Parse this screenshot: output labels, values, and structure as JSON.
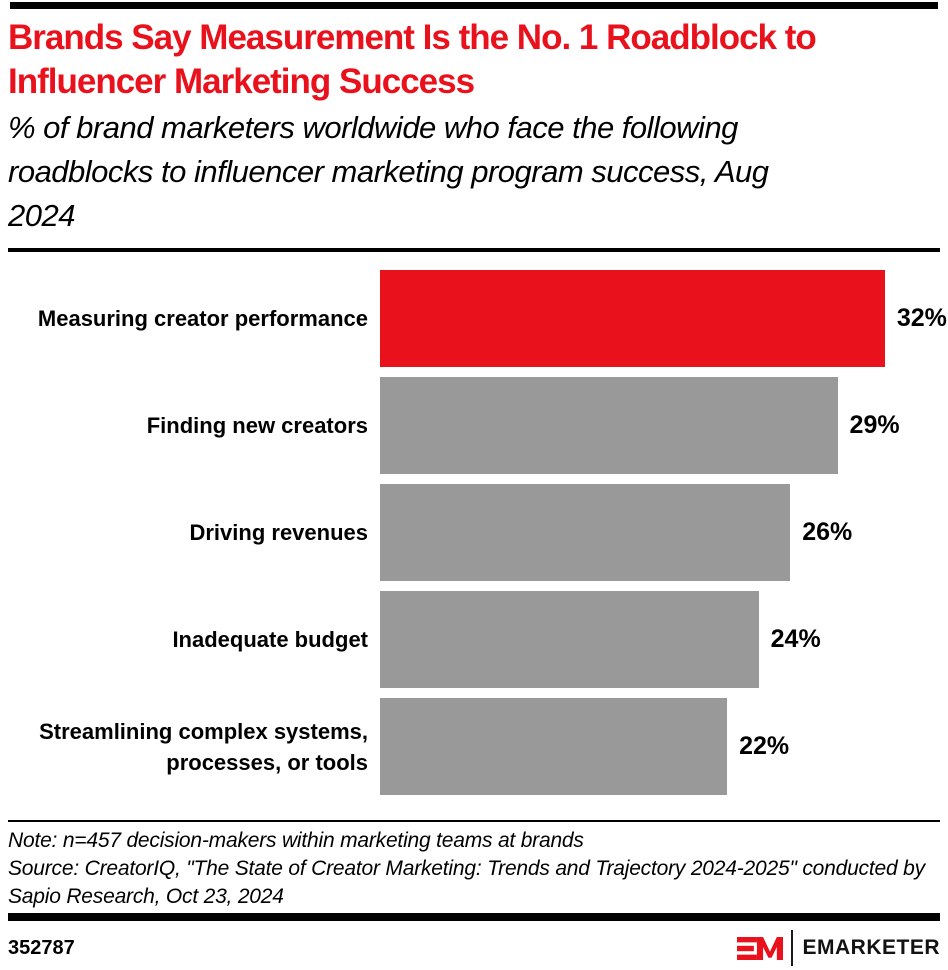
{
  "header": {
    "title": "Brands Say Measurement Is the No. 1 Roadblock to Influencer Marketing Success",
    "subtitle": "% of brand marketers worldwide who face the following roadblocks to influencer marketing program success, Aug 2024"
  },
  "chart_data": {
    "type": "bar",
    "orientation": "horizontal",
    "title": "Brands Say Measurement Is the No. 1 Roadblock to Influencer Marketing Success",
    "xlabel": "",
    "ylabel": "",
    "categories": [
      "Measuring creator performance",
      "Finding new creators",
      "Driving revenues",
      "Inadequate budget",
      "Streamlining complex systems, processes, or tools"
    ],
    "values": [
      32,
      29,
      26,
      24,
      22
    ],
    "value_labels": [
      "32%",
      "29%",
      "26%",
      "24%",
      "22%"
    ],
    "xlim": [
      0,
      36
    ],
    "grid": false,
    "legend": false,
    "highlight_index": 0,
    "colors": {
      "highlight": "#e8111c",
      "default": "#999999"
    }
  },
  "notes": {
    "note": "Note: n=457 decision-makers within marketing teams at brands",
    "source": "Source: CreatorIQ, \"The State of Creator Marketing: Trends and Trajectory 2024-2025\" conducted by Sapio Research, Oct 23, 2024"
  },
  "footer": {
    "chart_id": "352787",
    "brand_name": "EMARKETER",
    "brand_red": "#e8111c"
  }
}
